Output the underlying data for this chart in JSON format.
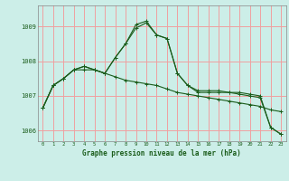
{
  "title": "Graphe pression niveau de la mer (hPa)",
  "background_color": "#cceee8",
  "grid_color": "#f0a0a0",
  "line_color": "#1a5c1a",
  "xlim": [
    -0.5,
    23.5
  ],
  "ylim": [
    1005.7,
    1009.6
  ],
  "yticks": [
    1006,
    1007,
    1008,
    1009
  ],
  "xticks": [
    0,
    1,
    2,
    3,
    4,
    5,
    6,
    7,
    8,
    9,
    10,
    11,
    12,
    13,
    14,
    15,
    16,
    17,
    18,
    19,
    20,
    21,
    22,
    23
  ],
  "series1": [
    1006.65,
    1007.3,
    1007.5,
    1007.75,
    1007.75,
    1007.75,
    1007.65,
    1007.55,
    1007.45,
    1007.4,
    1007.35,
    1007.3,
    1007.2,
    1007.1,
    1007.05,
    1007.0,
    1006.95,
    1006.9,
    1006.85,
    1006.8,
    1006.75,
    1006.7,
    1006.6,
    1006.55
  ],
  "series2": [
    1006.65,
    1007.3,
    1007.5,
    1007.75,
    1007.85,
    1007.75,
    1007.65,
    1008.1,
    1008.5,
    1008.95,
    1009.1,
    1008.75,
    1008.65,
    1007.65,
    1007.3,
    1007.1,
    1007.1,
    1007.1,
    1007.1,
    1007.05,
    1007.0,
    1006.95,
    1006.1,
    1005.9
  ],
  "series3": [
    1006.65,
    1007.3,
    1007.5,
    1007.75,
    1007.85,
    1007.75,
    1007.65,
    1008.1,
    1008.5,
    1009.05,
    1009.15,
    1008.75,
    1008.65,
    1007.65,
    1007.3,
    1007.15,
    1007.15,
    1007.15,
    1007.1,
    1007.1,
    1007.05,
    1007.0,
    1006.1,
    1005.9
  ]
}
